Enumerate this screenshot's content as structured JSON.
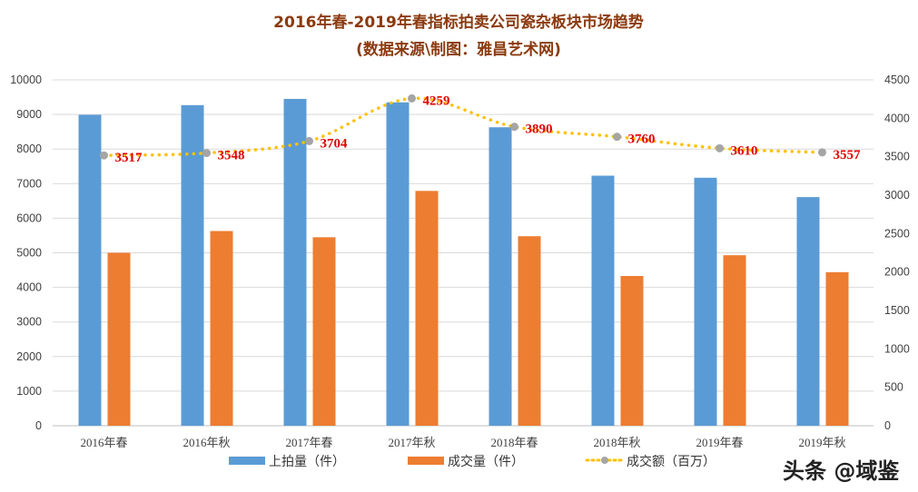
{
  "chart_data": {
    "type": "bar",
    "title": "2016年春-2019年春指标拍卖公司瓷杂板块市场趋势",
    "subtitle": "(数据来源\\制图：雅昌艺术网)",
    "categories": [
      "2016年春",
      "2016年秋",
      "2017年春",
      "2017年秋",
      "2018年春",
      "2018年秋",
      "2019年春",
      "2019年秋"
    ],
    "series": [
      {
        "name": "上拍量（件）",
        "type": "bar",
        "axis": "left",
        "color": "#5B9BD5",
        "values": [
          8990,
          9270,
          9450,
          9350,
          8630,
          7230,
          7170,
          6610
        ]
      },
      {
        "name": "成交量（件）",
        "type": "bar",
        "axis": "left",
        "color": "#ED7D31",
        "values": [
          5000,
          5630,
          5450,
          6790,
          5480,
          4330,
          4930,
          4440
        ]
      },
      {
        "name": "成交额（百万）",
        "type": "line",
        "axis": "right",
        "color": "#FFC000",
        "marker_color": "#A5A5A5",
        "style": "dotted-smooth",
        "values": [
          3517,
          3548,
          3704,
          4259,
          3890,
          3760,
          3610,
          3557
        ],
        "data_labels": [
          "3517",
          "3548",
          "3704",
          "4259",
          "3890",
          "3760",
          "3610",
          "3557"
        ]
      }
    ],
    "y_left": {
      "range": [
        0,
        10000
      ],
      "ticks": [
        "0",
        "1000",
        "2000",
        "3000",
        "4000",
        "5000",
        "6000",
        "7000",
        "8000",
        "9000",
        "10000"
      ]
    },
    "y_right": {
      "range": [
        0,
        4500
      ],
      "ticks": [
        "0",
        "500",
        "1000",
        "1500",
        "2000",
        "2500",
        "3000",
        "3500",
        "4000",
        "4500"
      ]
    },
    "grid": true,
    "legend": "bottom"
  },
  "watermark": "头条 @域鉴"
}
